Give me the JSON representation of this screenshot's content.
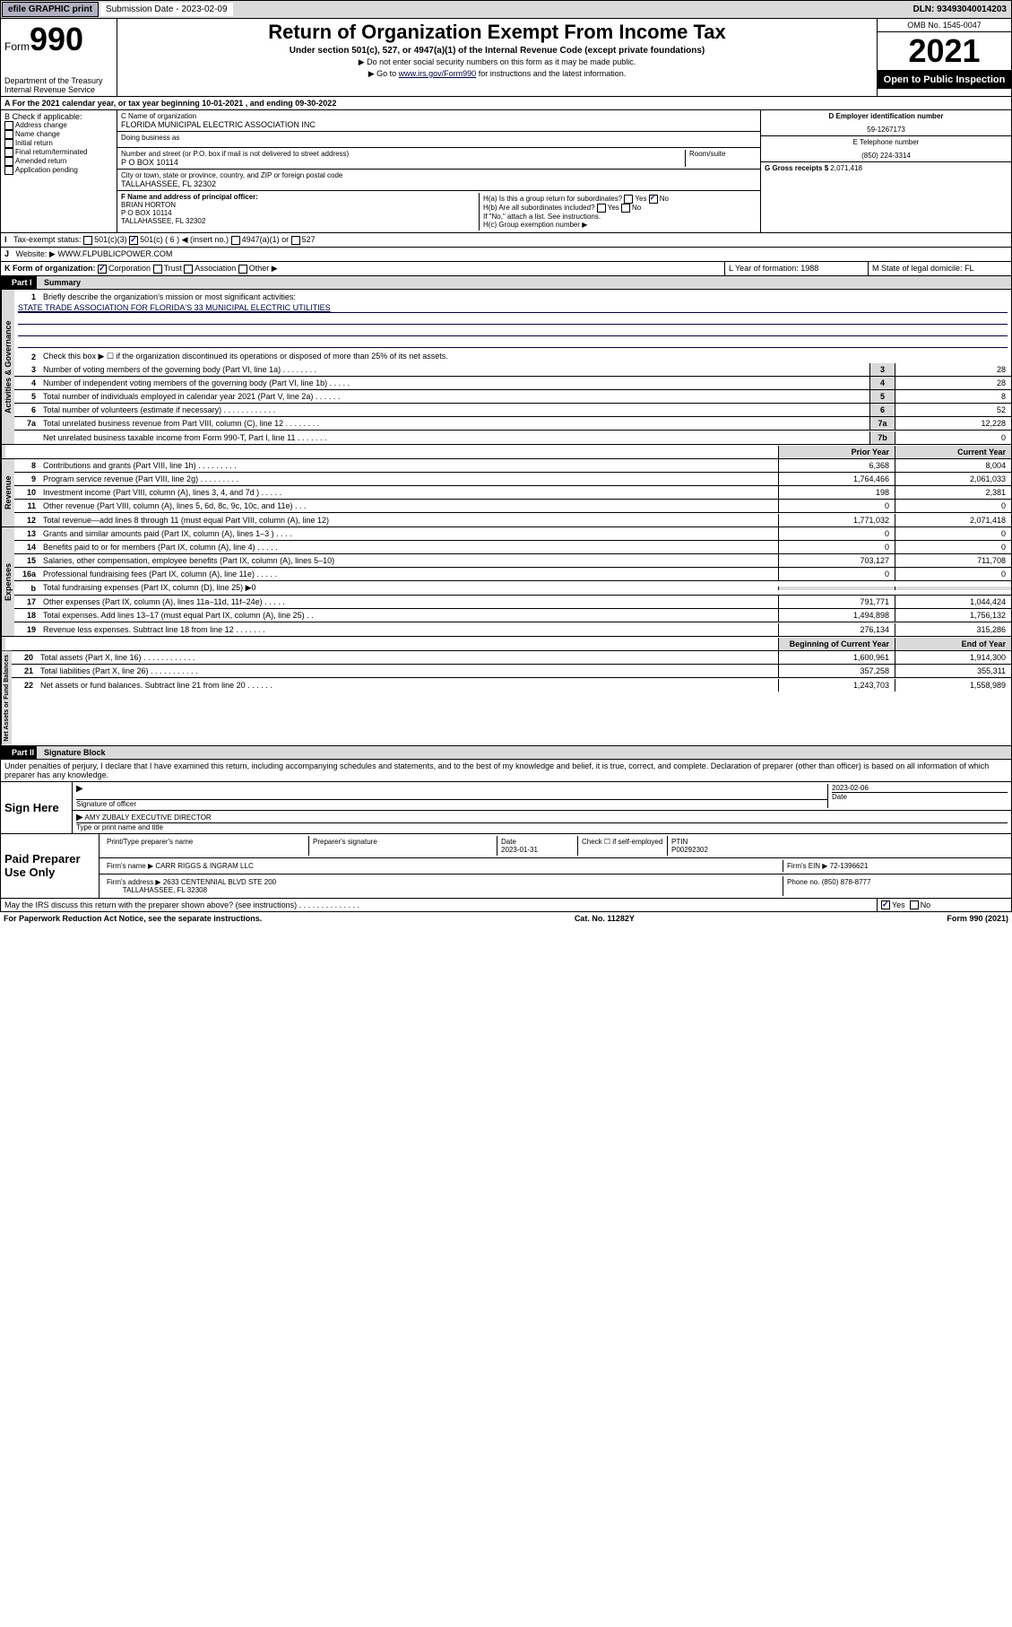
{
  "top": {
    "efile": "efile GRAPHIC print",
    "sub_label": "Submission Date - 2023-02-09",
    "dln": "DLN: 93493040014203"
  },
  "header": {
    "form": "Form",
    "formnum": "990",
    "dept": "Department of the Treasury\nInternal Revenue Service",
    "title": "Return of Organization Exempt From Income Tax",
    "sub": "Under section 501(c), 527, or 4947(a)(1) of the Internal Revenue Code (except private foundations)",
    "note1": "▶ Do not enter social security numbers on this form as it may be made public.",
    "note2_pre": "▶ Go to ",
    "note2_link": "www.irs.gov/Form990",
    "note2_post": " for instructions and the latest information.",
    "omb": "OMB No. 1545-0047",
    "year": "2021",
    "open": "Open to Public Inspection"
  },
  "rowA": "A For the 2021 calendar year, or tax year beginning 10-01-2021    , and ending 09-30-2022",
  "B": {
    "hdr": "B Check if applicable:",
    "opts": [
      "Address change",
      "Name change",
      "Initial return",
      "Final return/terminated",
      "Amended return",
      "Application pending"
    ]
  },
  "C": {
    "name_label": "C Name of organization",
    "name": "FLORIDA MUNICIPAL ELECTRIC ASSOCIATION INC",
    "dba_label": "Doing business as",
    "addr_label": "Number and street (or P.O. box if mail is not delivered to street address)",
    "room_label": "Room/suite",
    "addr": "P O BOX 10114",
    "city_label": "City or town, state or province, country, and ZIP or foreign postal code",
    "city": "TALLAHASSEE, FL  32302"
  },
  "D": {
    "label": "D Employer identification number",
    "val": "59-1267173"
  },
  "E": {
    "label": "E Telephone number",
    "val": "(850) 224-3314"
  },
  "G": {
    "label": "G Gross receipts $",
    "val": "2,071,418"
  },
  "F": {
    "label": "F Name and address of principal officer:",
    "name": "BRIAN HORTON",
    "addr": "P O BOX 10114",
    "city": "TALLAHASSEE, FL  32302"
  },
  "H": {
    "a": "H(a)  Is this a group return for subordinates?",
    "b": "H(b)  Are all subordinates included?",
    "b_note": "If \"No,\" attach a list. See instructions.",
    "c": "H(c)  Group exemption number ▶"
  },
  "I": {
    "label": "Tax-exempt status:",
    "opts": [
      "501(c)(3)",
      "501(c) ( 6 ) ◀ (insert no.)",
      "4947(a)(1) or",
      "527"
    ]
  },
  "J": {
    "label": "Website: ▶",
    "val": "WWW.FLPUBLICPOWER.COM"
  },
  "K": {
    "label": "K Form of organization:",
    "opts": [
      "Corporation",
      "Trust",
      "Association",
      "Other ▶"
    ]
  },
  "L": {
    "label": "L Year of formation:",
    "val": "1988"
  },
  "M": {
    "label": "M State of legal domicile:",
    "val": "FL"
  },
  "partI": {
    "num": "Part I",
    "title": "Summary",
    "l1_label": "Briefly describe the organization's mission or most significant activities:",
    "l1_val": "STATE TRADE ASSOCIATION FOR FLORIDA'S 33 MUNICIPAL ELECTRIC UTILITIES",
    "l2": "Check this box ▶ ☐  if the organization discontinued its operations or disposed of more than 25% of its net assets.",
    "lines_gov": [
      {
        "n": "3",
        "d": "Number of voting members of the governing body (Part VI, line 1a)   .    .    .    .    .    .    .    .",
        "b": "3",
        "v": "28"
      },
      {
        "n": "4",
        "d": "Number of independent voting members of the governing body (Part VI, line 1b)   .    .    .    .    .",
        "b": "4",
        "v": "28"
      },
      {
        "n": "5",
        "d": "Total number of individuals employed in calendar year 2021 (Part V, line 2a)   .    .    .    .    .    .",
        "b": "5",
        "v": "8"
      },
      {
        "n": "6",
        "d": "Total number of volunteers (estimate if necessary)   .    .    .    .    .    .    .    .    .    .    .    .",
        "b": "6",
        "v": "52"
      },
      {
        "n": "7a",
        "d": "Total unrelated business revenue from Part VIII, column (C), line 12   .    .    .    .    .    .    .    .",
        "b": "7a",
        "v": "12,228"
      },
      {
        "n": "",
        "d": "Net unrelated business taxable income from Form 990-T, Part I, line 11   .    .    .    .    .    .    .",
        "b": "7b",
        "v": "0"
      }
    ],
    "col_prior": "Prior Year",
    "col_curr": "Current Year",
    "lines_rev": [
      {
        "n": "8",
        "d": "Contributions and grants (Part VIII, line 1h)   .    .    .    .    .    .    .    .    .",
        "p": "6,368",
        "c": "8,004"
      },
      {
        "n": "9",
        "d": "Program service revenue (Part VIII, line 2g)   .    .    .    .    .    .    .    .    .",
        "p": "1,764,466",
        "c": "2,061,033"
      },
      {
        "n": "10",
        "d": "Investment income (Part VIII, column (A), lines 3, 4, and 7d )   .    .    .    .    .",
        "p": "198",
        "c": "2,381"
      },
      {
        "n": "11",
        "d": "Other revenue (Part VIII, column (A), lines 5, 6d, 8c, 9c, 10c, and 11e)   .    .    .",
        "p": "0",
        "c": "0"
      },
      {
        "n": "12",
        "d": "Total revenue—add lines 8 through 11 (must equal Part VIII, column (A), line 12)",
        "p": "1,771,032",
        "c": "2,071,418"
      }
    ],
    "lines_exp": [
      {
        "n": "13",
        "d": "Grants and similar amounts paid (Part IX, column (A), lines 1–3 )   .    .    .    .",
        "p": "0",
        "c": "0"
      },
      {
        "n": "14",
        "d": "Benefits paid to or for members (Part IX, column (A), line 4)   .    .    .    .    .",
        "p": "0",
        "c": "0"
      },
      {
        "n": "15",
        "d": "Salaries, other compensation, employee benefits (Part IX, column (A), lines 5–10)",
        "p": "703,127",
        "c": "711,708"
      },
      {
        "n": "16a",
        "d": "Professional fundraising fees (Part IX, column (A), line 11e)   .    .    .    .    .",
        "p": "0",
        "c": "0"
      },
      {
        "n": "b",
        "d": "Total fundraising expenses (Part IX, column (D), line 25) ▶0",
        "p": "",
        "c": ""
      },
      {
        "n": "17",
        "d": "Other expenses (Part IX, column (A), lines 11a–11d, 11f–24e)   .    .    .    .    .",
        "p": "791,771",
        "c": "1,044,424"
      },
      {
        "n": "18",
        "d": "Total expenses. Add lines 13–17 (must equal Part IX, column (A), line 25)   .    .",
        "p": "1,494,898",
        "c": "1,756,132"
      },
      {
        "n": "19",
        "d": "Revenue less expenses. Subtract line 18 from line 12   .    .    .    .    .    .    .",
        "p": "276,134",
        "c": "315,286"
      }
    ],
    "col_beg": "Beginning of Current Year",
    "col_end": "End of Year",
    "lines_net": [
      {
        "n": "20",
        "d": "Total assets (Part X, line 16)   .    .    .    .    .    .    .    .    .    .    .    .",
        "p": "1,600,961",
        "c": "1,914,300"
      },
      {
        "n": "21",
        "d": "Total liabilities (Part X, line 26)   .    .    .    .    .    .    .    .    .    .    .",
        "p": "357,258",
        "c": "355,311"
      },
      {
        "n": "22",
        "d": "Net assets or fund balances. Subtract line 21 from line 20   .    .    .    .    .    .",
        "p": "1,243,703",
        "c": "1,558,989"
      }
    ]
  },
  "partII": {
    "num": "Part II",
    "title": "Signature Block",
    "decl": "Under penalties of perjury, I declare that I have examined this return, including accompanying schedules and statements, and to the best of my knowledge and belief, it is true, correct, and complete. Declaration of preparer (other than officer) is based on all information of which preparer has any knowledge."
  },
  "sign": {
    "here": "Sign Here",
    "sig_label": "Signature of officer",
    "date": "2023-02-06",
    "date_label": "Date",
    "name": "AMY ZUBALY EXECUTIVE DIRECTOR",
    "name_label": "Type or print name and title"
  },
  "prep": {
    "title": "Paid Preparer Use Only",
    "h1": "Print/Type preparer's name",
    "h2": "Preparer's signature",
    "h3": "Date",
    "h4": "Check ☐ if self-employed",
    "h5": "PTIN",
    "date": "2023-01-31",
    "ptin": "P00292302",
    "firm_label": "Firm's name    ▶",
    "firm": "CARR RIGGS & INGRAM LLC",
    "ein_label": "Firm's EIN ▶",
    "ein": "72-1396621",
    "addr_label": "Firm's address ▶",
    "addr": "2633 CENTENNIAL BLVD STE 200",
    "city": "TALLAHASSEE, FL  32308",
    "phone_label": "Phone no.",
    "phone": "(850) 878-8777"
  },
  "discuss": "May the IRS discuss this return with the preparer shown above? (see instructions)   .    .    .    .    .    .    .    .    .    .    .    .    .    .",
  "footer": {
    "pra": "For Paperwork Reduction Act Notice, see the separate instructions.",
    "cat": "Cat. No. 11282Y",
    "form": "Form 990 (2021)"
  },
  "vert": {
    "gov": "Activities & Governance",
    "rev": "Revenue",
    "exp": "Expenses",
    "net": "Net Assets or Fund Balances"
  }
}
